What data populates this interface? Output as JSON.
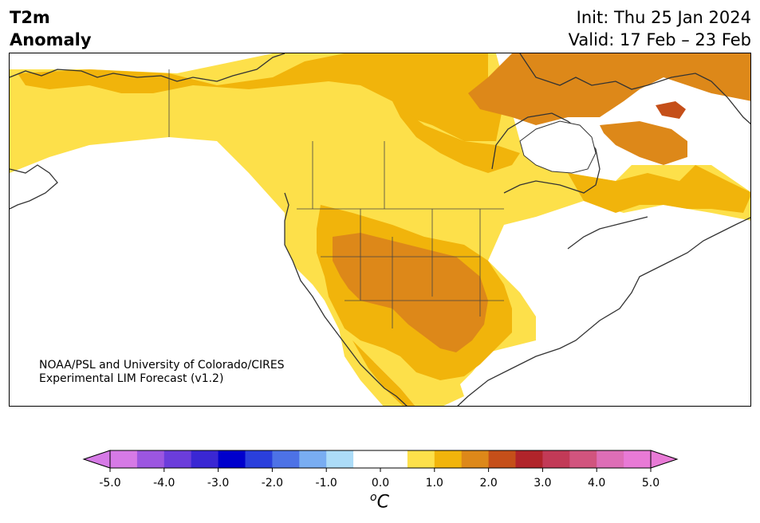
{
  "title": {
    "variable": "T2m",
    "subtitle": "Anomaly",
    "init": "Init: Thu 25 Jan 2024",
    "valid": "Valid: 17 Feb – 23 Feb"
  },
  "credit": {
    "line1": "NOAA/PSL and University of Colorado/CIRES",
    "line2": "Experimental LIM Forecast (v1.2)"
  },
  "colorbar": {
    "unit_base": "C",
    "unit_sup": "o",
    "ticks": [
      "-5.0",
      "-4.0",
      "-3.0",
      "-2.0",
      "-1.0",
      "0.0",
      "1.0",
      "2.0",
      "3.0",
      "4.0",
      "5.0"
    ],
    "colors": [
      "#d67ae6",
      "#9c56e0",
      "#6b3ddb",
      "#3a27d3",
      "#0000cd",
      "#2a3fdc",
      "#4d72e6",
      "#79adf2",
      "#acdcf8",
      "#ffffff",
      "#ffffff",
      "#fde04a",
      "#f1b40b",
      "#dd8819",
      "#c54f19",
      "#b1242a",
      "#c23a57",
      "#d1547e",
      "#dd6eb6",
      "#e87ad6"
    ],
    "under_color": "#d67ae6",
    "over_color": "#e87ad6"
  },
  "map": {
    "region": "North America",
    "anomaly_levels": {
      "light_warm": "#fde04a",
      "warm": "#f1b40b",
      "warmer": "#dd8819",
      "hot": "#c54f19"
    }
  }
}
